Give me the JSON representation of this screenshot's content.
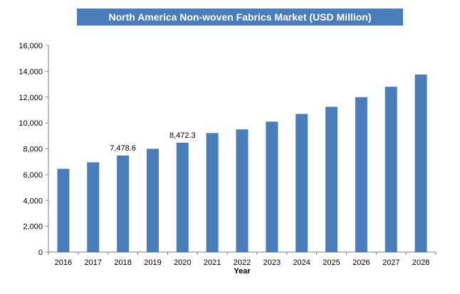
{
  "chart_data": {
    "type": "bar",
    "title": "North America Non-woven Fabrics Market (USD Million)",
    "xlabel": "Year",
    "ylabel": "",
    "categories": [
      "2016",
      "2017",
      "2018",
      "2019",
      "2020",
      "2021",
      "2022",
      "2023",
      "2024",
      "2025",
      "2026",
      "2027",
      "2028"
    ],
    "values": [
      6450,
      6950,
      7478.6,
      8000,
      8472.3,
      9220,
      9500,
      10100,
      10700,
      11250,
      12000,
      12800,
      13750
    ],
    "data_labels": [
      {
        "category": "2018",
        "text": "7,478.6"
      },
      {
        "category": "2020",
        "text": "8,472.3"
      }
    ],
    "ylim": [
      0,
      16000
    ],
    "y_ticks": [
      0,
      2000,
      4000,
      6000,
      8000,
      10000,
      12000,
      14000,
      16000
    ],
    "y_tick_labels": [
      "0",
      "2,000",
      "4,000",
      "6,000",
      "8,000",
      "10,000",
      "12,000",
      "14,000",
      "16,000"
    ],
    "bar_color": "#4a7ebb",
    "grid": false,
    "legend": "none"
  }
}
